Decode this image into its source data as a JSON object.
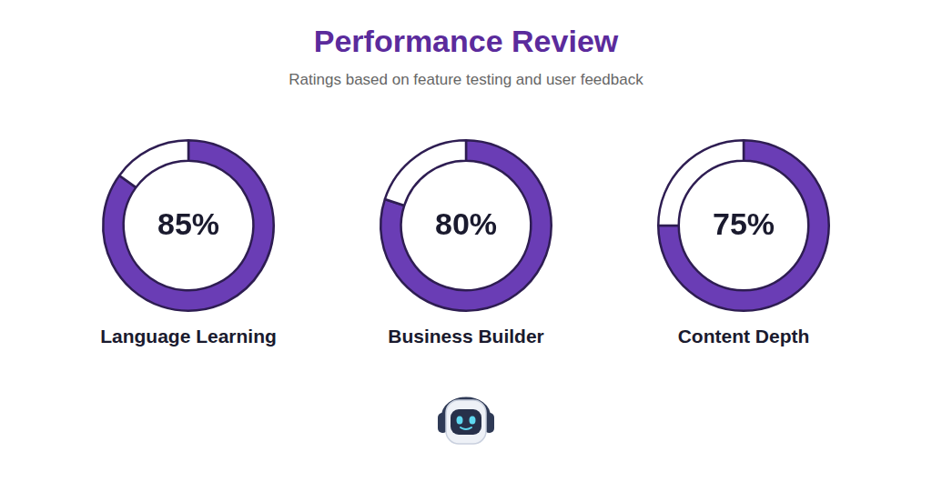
{
  "title": "Performance Review",
  "subtitle": "Ratings based on feature testing and user feedback",
  "chart_data": [
    {
      "type": "doughnut",
      "title": "Language Learning",
      "values": [
        85
      ],
      "value_labels": [
        "85%"
      ],
      "ylim": [
        0,
        100
      ],
      "color": "#6a3db5",
      "data_labels": true
    },
    {
      "type": "doughnut",
      "title": "Business Builder",
      "values": [
        80
      ],
      "value_labels": [
        "80%"
      ],
      "ylim": [
        0,
        100
      ],
      "color": "#6a3db5",
      "data_labels": true
    },
    {
      "type": "doughnut",
      "title": "Content Depth",
      "values": [
        75
      ],
      "value_labels": [
        "75%"
      ],
      "ylim": [
        0,
        100
      ],
      "color": "#6a3db5",
      "data_labels": true
    }
  ]
}
